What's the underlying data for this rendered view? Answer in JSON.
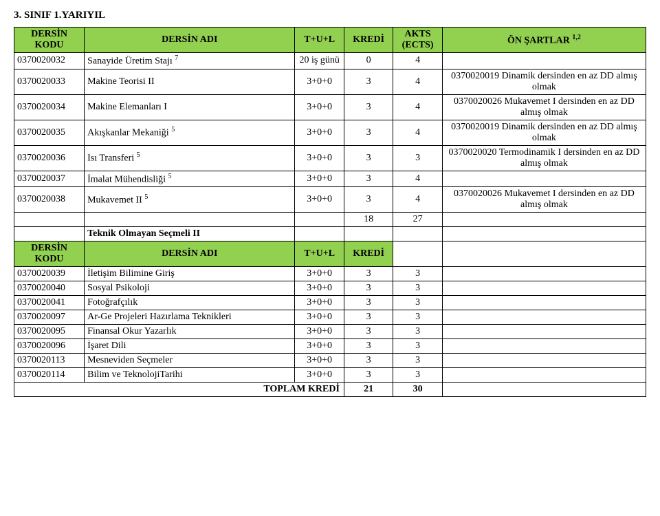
{
  "title": "3. SINIF 1.YARIYIL",
  "header": {
    "code": "DERSİN KODU",
    "name": "DERSİN ADI",
    "tul": "T+U+L",
    "kredi": "KREDİ",
    "akts": "AKTS (ECTS)",
    "onsart": "ÖN ŞARTLAR ",
    "onsart_sup": "1,2"
  },
  "rows": [
    {
      "code": "0370020032",
      "name": "Sanayide Üretim Stajı ",
      "sup": "7",
      "tul": "20 iş günü",
      "kredi": "0",
      "akts": "4",
      "onsart": ""
    },
    {
      "code": "0370020033",
      "name": "Makine Teorisi II",
      "sup": "",
      "tul": "3+0+0",
      "kredi": "3",
      "akts": "4",
      "onsart": "0370020019 Dinamik dersinden en az DD almış olmak"
    },
    {
      "code": "0370020034",
      "name": "Makine Elemanları I",
      "sup": "",
      "tul": "3+0+0",
      "kredi": "3",
      "akts": "4",
      "onsart": "0370020026 Mukavemet I dersinden en az DD almış olmak"
    },
    {
      "code": "0370020035",
      "name": "Akışkanlar Mekaniği ",
      "sup": "5",
      "tul": "3+0+0",
      "kredi": "3",
      "akts": "4",
      "onsart": "0370020019 Dinamik dersinden en az DD almış olmak"
    },
    {
      "code": "0370020036",
      "name": "Isı Transferi ",
      "sup": "5",
      "tul": "3+0+0",
      "kredi": "3",
      "akts": "3",
      "onsart": "0370020020 Termodinamik I dersinden en az DD almış olmak"
    },
    {
      "code": "0370020037",
      "name": "İmalat Mühendisliği ",
      "sup": "5",
      "tul": "3+0+0",
      "kredi": "3",
      "akts": "4",
      "onsart": ""
    },
    {
      "code": "0370020038",
      "name": "Mukavemet II ",
      "sup": "5",
      "tul": "3+0+0",
      "kredi": "3",
      "akts": "4",
      "onsart": "0370020026 Mukavemet I dersinden en az DD almış olmak"
    }
  ],
  "subtotal": {
    "kredi": "18",
    "akts": "27"
  },
  "elective_header": "Teknik Olmayan Seçmeli II",
  "header2": {
    "code": "DERSİN KODU",
    "name": "DERSİN ADI",
    "tul": "T+U+L",
    "kredi": "KREDİ"
  },
  "elective_rows": [
    {
      "code": "0370020039",
      "name": "İletişim Bilimine Giriş",
      "tul": "3+0+0",
      "kredi": "3",
      "akts": "3"
    },
    {
      "code": "0370020040",
      "name": "Sosyal Psikoloji",
      "tul": "3+0+0",
      "kredi": "3",
      "akts": "3"
    },
    {
      "code": "0370020041",
      "name": "Fotoğrafçılık",
      "tul": "3+0+0",
      "kredi": "3",
      "akts": "3"
    },
    {
      "code": "0370020097",
      "name": "Ar-Ge Projeleri Hazırlama Teknikleri",
      "tul": "3+0+0",
      "kredi": "3",
      "akts": "3"
    },
    {
      "code": "0370020095",
      "name": "Finansal Okur Yazarlık",
      "tul": "3+0+0",
      "kredi": "3",
      "akts": "3"
    },
    {
      "code": "0370020096",
      "name": "İşaret Dili",
      "tul": "3+0+0",
      "kredi": "3",
      "akts": "3"
    },
    {
      "code": "0370020113",
      "name": "Mesneviden Seçmeler",
      "tul": "3+0+0",
      "kredi": "3",
      "akts": "3"
    },
    {
      "code": "0370020114",
      "name": "Bilim ve TeknolojiTarihi",
      "tul": "3+0+0",
      "kredi": "3",
      "akts": "3"
    }
  ],
  "total": {
    "label": "TOPLAM KREDİ",
    "kredi": "21",
    "akts": "30"
  },
  "colors": {
    "header_bg": "#92d050",
    "border": "#000000",
    "bg": "#ffffff"
  }
}
